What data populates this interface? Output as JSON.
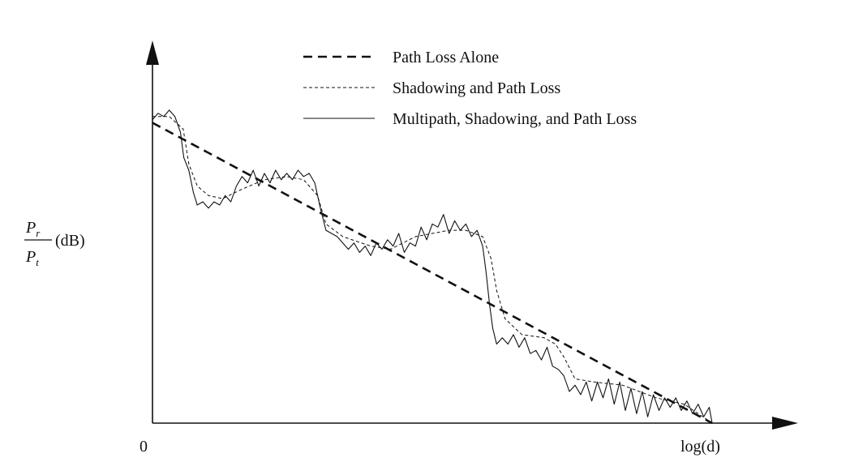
{
  "chart_data": {
    "type": "line",
    "title": "",
    "xlabel": "log(d)",
    "ylabel_numerator": "P",
    "ylabel_numerator_sub": "r",
    "ylabel_denominator": "P",
    "ylabel_denominator_sub": "t",
    "ylabel_unit": "(dB)",
    "x_origin_label": "0",
    "xlim": [
      0,
      100
    ],
    "ylim": [
      0,
      100
    ],
    "grid": false,
    "legend_position": "top",
    "series": [
      {
        "name": "Path Loss Alone",
        "style": "dashed-bold",
        "color": "#111111",
        "points": [
          [
            0,
            95
          ],
          [
            100,
            0
          ]
        ]
      },
      {
        "name": "Shadowing and Path Loss",
        "style": "dashed-fine",
        "color": "#111111",
        "points": [
          [
            0,
            97
          ],
          [
            3,
            97
          ],
          [
            5.5,
            93
          ],
          [
            6.5,
            82
          ],
          [
            8,
            75
          ],
          [
            10,
            72
          ],
          [
            12.5,
            71
          ],
          [
            16,
            74
          ],
          [
            20,
            77
          ],
          [
            24,
            78
          ],
          [
            27,
            77
          ],
          [
            29.5,
            72
          ],
          [
            31,
            63
          ],
          [
            34,
            59
          ],
          [
            39,
            56
          ],
          [
            42.5,
            55
          ],
          [
            47,
            59
          ],
          [
            53,
            61
          ],
          [
            56,
            61
          ],
          [
            59,
            59
          ],
          [
            60.5,
            52
          ],
          [
            61.5,
            42
          ],
          [
            63,
            33
          ],
          [
            66,
            28
          ],
          [
            70,
            27
          ],
          [
            72,
            25
          ],
          [
            73.5,
            21
          ],
          [
            75.5,
            14
          ],
          [
            79,
            13
          ],
          [
            84,
            12
          ],
          [
            90,
            8
          ],
          [
            95,
            6
          ],
          [
            100,
            0
          ]
        ]
      },
      {
        "name": "Multipath, Shadowing, and Path Loss",
        "style": "solid",
        "color": "#111111",
        "points": [
          [
            0,
            96
          ],
          [
            1,
            98
          ],
          [
            2,
            97
          ],
          [
            3,
            99
          ],
          [
            4,
            97
          ],
          [
            5,
            92
          ],
          [
            5.6,
            84
          ],
          [
            6.5,
            80
          ],
          [
            7.3,
            73
          ],
          [
            8,
            69
          ],
          [
            9,
            70
          ],
          [
            10,
            68
          ],
          [
            11,
            70
          ],
          [
            12,
            69
          ],
          [
            13,
            72
          ],
          [
            14,
            70
          ],
          [
            15,
            75
          ],
          [
            16,
            78
          ],
          [
            17,
            76
          ],
          [
            18,
            80
          ],
          [
            19,
            75
          ],
          [
            20,
            79
          ],
          [
            21,
            76
          ],
          [
            22,
            80
          ],
          [
            23,
            77
          ],
          [
            24,
            79
          ],
          [
            25,
            77
          ],
          [
            26,
            80
          ],
          [
            27,
            78
          ],
          [
            28,
            79
          ],
          [
            29,
            76
          ],
          [
            30,
            68
          ],
          [
            31,
            61
          ],
          [
            32,
            60
          ],
          [
            33,
            59
          ],
          [
            34,
            57
          ],
          [
            35,
            55
          ],
          [
            36,
            57
          ],
          [
            37,
            54
          ],
          [
            38,
            56
          ],
          [
            39,
            53
          ],
          [
            40,
            57
          ],
          [
            41,
            55
          ],
          [
            42,
            58
          ],
          [
            43,
            56
          ],
          [
            44,
            60
          ],
          [
            45,
            54
          ],
          [
            46,
            57
          ],
          [
            47,
            56
          ],
          [
            48,
            62
          ],
          [
            49,
            58
          ],
          [
            50,
            63
          ],
          [
            51,
            62
          ],
          [
            52,
            66
          ],
          [
            53,
            60
          ],
          [
            54,
            64
          ],
          [
            55,
            61
          ],
          [
            56,
            63
          ],
          [
            57,
            59
          ],
          [
            58,
            61
          ],
          [
            59,
            56
          ],
          [
            59.6,
            48
          ],
          [
            60.2,
            38
          ],
          [
            60.8,
            30
          ],
          [
            61.5,
            25
          ],
          [
            62.5,
            27
          ],
          [
            63.5,
            25
          ],
          [
            64.5,
            28
          ],
          [
            65.5,
            24
          ],
          [
            66.5,
            27
          ],
          [
            67.5,
            22
          ],
          [
            68.5,
            23
          ],
          [
            69.5,
            20
          ],
          [
            70.5,
            24
          ],
          [
            71.5,
            18
          ],
          [
            72.5,
            17
          ],
          [
            73.5,
            15
          ],
          [
            74.5,
            10
          ],
          [
            75.5,
            12
          ],
          [
            76.5,
            9
          ],
          [
            77.5,
            13
          ],
          [
            78.5,
            7
          ],
          [
            79.5,
            13
          ],
          [
            80.5,
            8
          ],
          [
            81.5,
            14
          ],
          [
            82.5,
            6
          ],
          [
            83.5,
            13
          ],
          [
            84.5,
            4
          ],
          [
            85.5,
            11
          ],
          [
            86.5,
            3
          ],
          [
            87.5,
            10
          ],
          [
            88.5,
            2
          ],
          [
            89.5,
            9
          ],
          [
            90.5,
            4
          ],
          [
            91.5,
            8
          ],
          [
            92.5,
            5
          ],
          [
            93.5,
            8
          ],
          [
            94.5,
            4
          ],
          [
            95.5,
            7
          ],
          [
            96.5,
            3
          ],
          [
            97.5,
            6
          ],
          [
            98.5,
            2
          ],
          [
            99.5,
            5
          ],
          [
            100,
            0
          ]
        ]
      }
    ]
  }
}
